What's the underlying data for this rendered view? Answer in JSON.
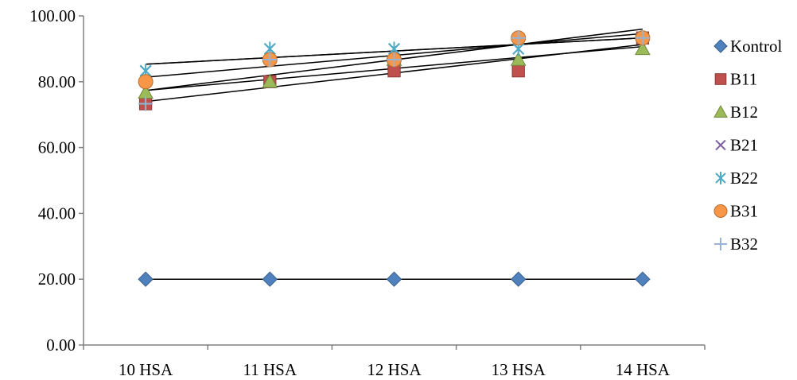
{
  "chart_data": {
    "type": "scatter",
    "title": "",
    "xlabel": "",
    "ylabel": "",
    "categories": [
      "10 HSA",
      "11 HSA",
      "12 HSA",
      "13 HSA",
      "14 HSA"
    ],
    "ylim": [
      0,
      100
    ],
    "yticks": [
      0,
      20,
      40,
      60,
      80,
      100
    ],
    "ytick_labels": [
      "0.00",
      "20.00",
      "40.00",
      "60.00",
      "80.00",
      "100.00"
    ],
    "grid": false,
    "legend_position": "right",
    "trendlines": true,
    "series": [
      {
        "name": "Kontrol",
        "marker": "diamond",
        "color": "#4F81BD",
        "values": [
          20,
          20,
          20,
          20,
          20
        ]
      },
      {
        "name": "B11",
        "marker": "square",
        "color": "#C0504D",
        "values": [
          73.3,
          80,
          83.3,
          83.3,
          93.3
        ]
      },
      {
        "name": "B12",
        "marker": "triangle",
        "color": "#9BBB59",
        "values": [
          76.7,
          80,
          86.7,
          86.7,
          90
        ]
      },
      {
        "name": "B21",
        "marker": "x",
        "color": "#8064A2",
        "values": [
          83.3,
          90,
          90,
          90,
          93.3
        ]
      },
      {
        "name": "B22",
        "marker": "asterisk",
        "color": "#4BACC6",
        "values": [
          83.3,
          90,
          90,
          90,
          93.3
        ]
      },
      {
        "name": "B31",
        "marker": "circle",
        "color": "#F79646",
        "values": [
          80,
          86.7,
          86.7,
          93.3,
          93.3
        ]
      },
      {
        "name": "B32",
        "marker": "plus",
        "color": "#95B3D7",
        "values": [
          73.3,
          86.7,
          86.7,
          93.3,
          93.3
        ]
      }
    ]
  }
}
